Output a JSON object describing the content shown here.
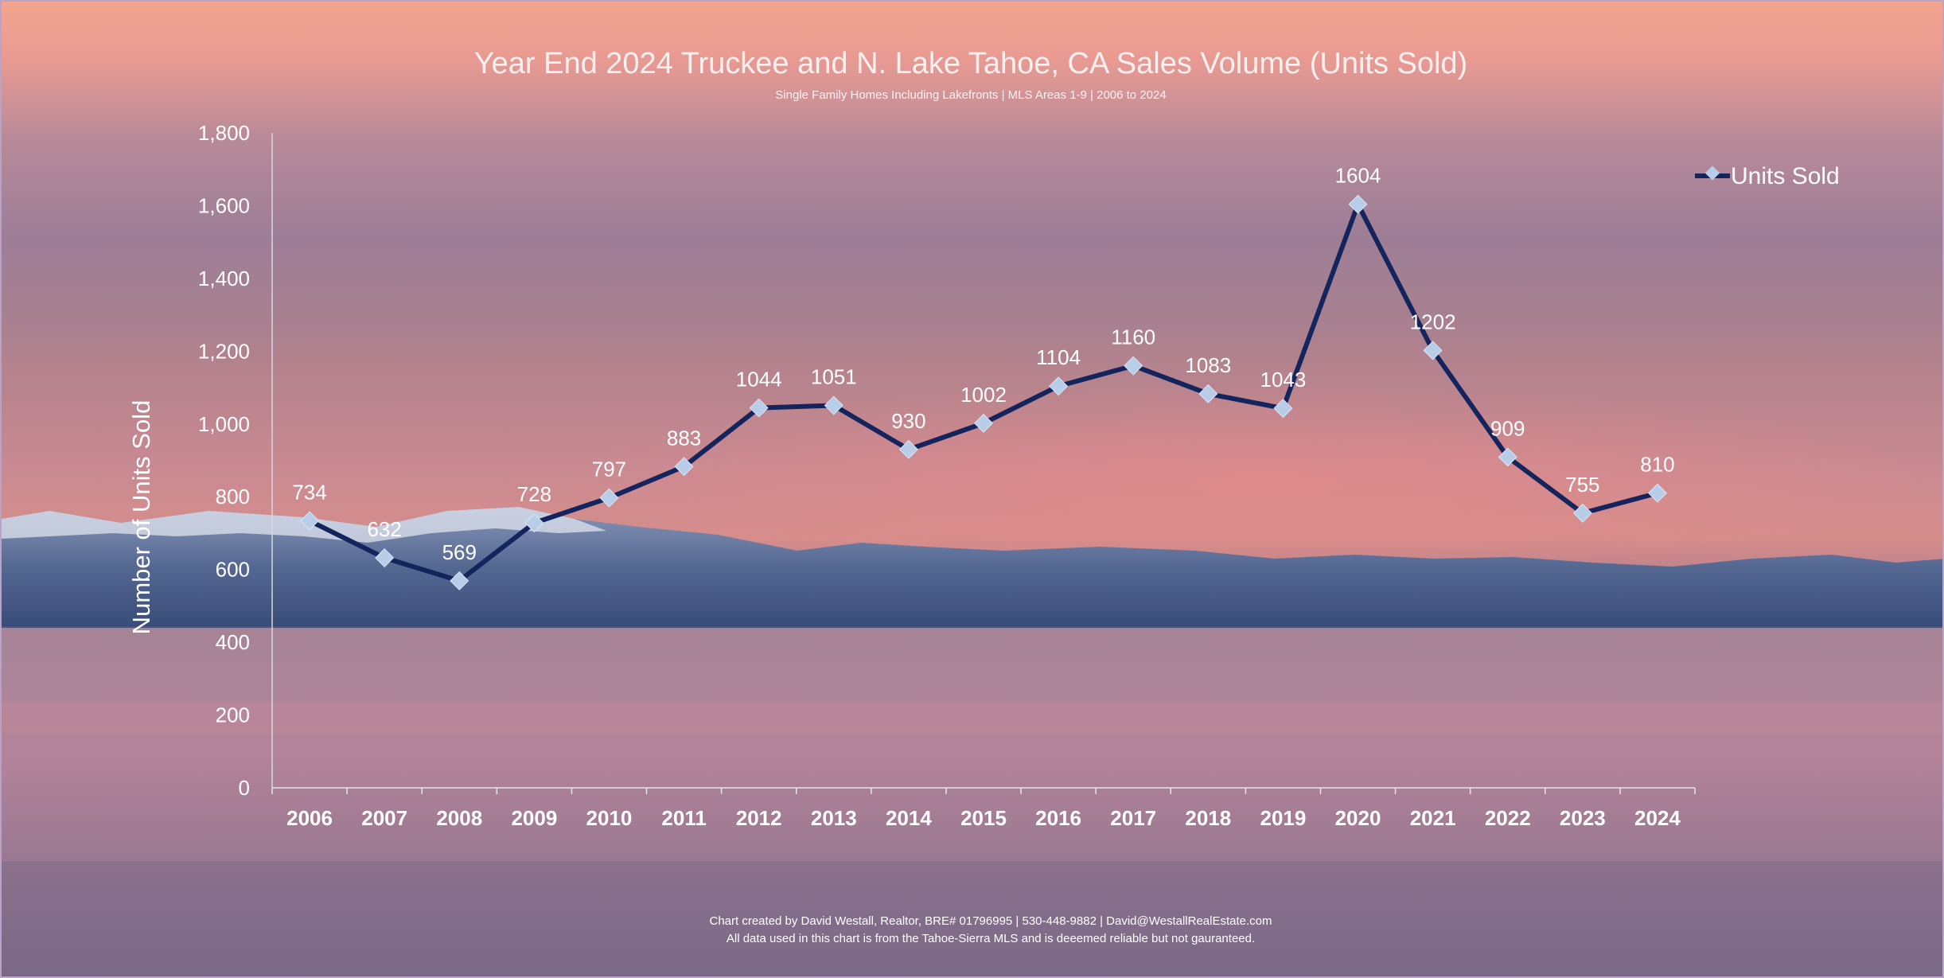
{
  "chart_data": {
    "type": "line",
    "title": "Year End 2024 Truckee and N. Lake Tahoe, CA Sales Volume (Units Sold)",
    "subtitle": "Single Family Homes Including Lakefronts | MLS Areas 1-9 | 2006 to 2024",
    "xlabel": "",
    "ylabel": "Number of Units Sold",
    "ylim": [
      0,
      1800
    ],
    "y_ticks": [
      "0",
      "200",
      "400",
      "600",
      "800",
      "1,000",
      "1,200",
      "1,400",
      "1,600",
      "1,800"
    ],
    "categories": [
      "2006",
      "2007",
      "2008",
      "2009",
      "2010",
      "2011",
      "2012",
      "2013",
      "2014",
      "2015",
      "2016",
      "2017",
      "2018",
      "2019",
      "2020",
      "2021",
      "2022",
      "2023",
      "2024"
    ],
    "series": [
      {
        "name": "Units Sold",
        "values": [
          734,
          632,
          569,
          728,
          797,
          883,
          1044,
          1051,
          930,
          1002,
          1104,
          1160,
          1083,
          1043,
          1604,
          1202,
          909,
          755,
          810
        ],
        "line_color": "#14245c",
        "marker_color": "#b8cde8"
      }
    ],
    "legend": "top-right",
    "grid": false
  },
  "footer": {
    "line1": "Chart created by David Westall, Realtor, BRE# 01796995 | 530-448-9882 | David@WestallRealEstate.com",
    "line2": "All data used in this chart is from the Tahoe-Sierra MLS and is deeemed reliable but  not gauranteed."
  }
}
